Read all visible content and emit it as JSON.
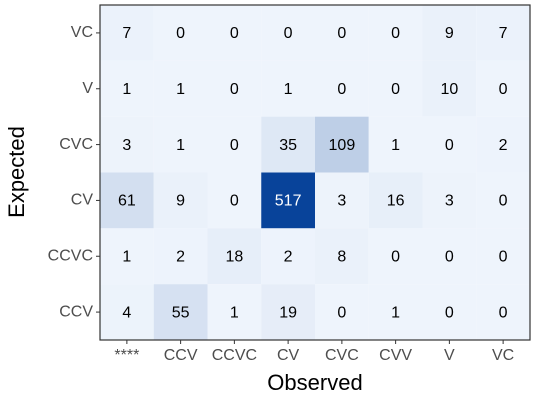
{
  "chart_data": {
    "type": "heatmap",
    "x_label": "Observed",
    "y_label": "Expected",
    "x_categories": [
      "****",
      "CCV",
      "CCVC",
      "CV",
      "CVC",
      "CVV",
      "V",
      "VC"
    ],
    "y_categories": [
      "VC",
      "V",
      "CVC",
      "CV",
      "CCVC",
      "CCV"
    ],
    "values": [
      [
        7,
        0,
        0,
        0,
        0,
        0,
        9,
        7
      ],
      [
        1,
        1,
        0,
        1,
        0,
        0,
        10,
        0
      ],
      [
        3,
        1,
        0,
        35,
        109,
        1,
        0,
        2
      ],
      [
        61,
        9,
        0,
        517,
        3,
        16,
        3,
        0
      ],
      [
        1,
        2,
        18,
        2,
        8,
        0,
        0,
        0
      ],
      [
        4,
        55,
        1,
        19,
        0,
        1,
        0,
        0
      ]
    ],
    "colors": [
      "#eef4fc",
      "#08439a"
    ]
  }
}
